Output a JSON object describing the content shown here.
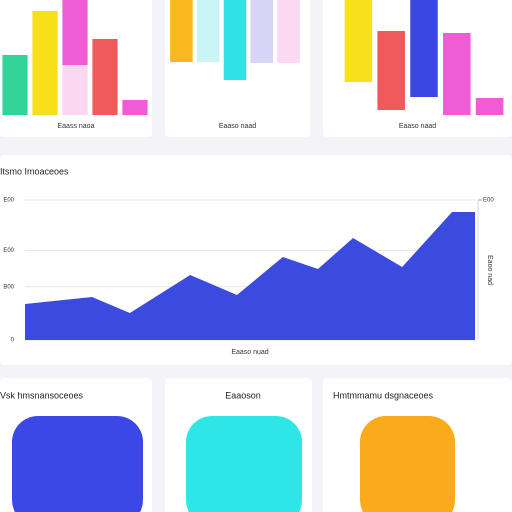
{
  "chart_data": [
    {
      "type": "floating-bar",
      "label": "Eaass naoa",
      "ylim": [
        0,
        115
      ],
      "bars": [
        {
          "segments": [
            {
              "low": 0,
              "high": 60,
              "color": "#33d49a"
            }
          ]
        },
        {
          "segments": [
            {
              "low": 0,
              "high": 104,
              "color": "#f7e01a"
            }
          ]
        },
        {
          "segments": [
            {
              "low": 0,
              "high": 50,
              "color": "#fbd7f1"
            },
            {
              "low": 50,
              "high": 115,
              "color": "#f05bd6"
            }
          ]
        },
        {
          "segments": [
            {
              "low": 0,
              "high": 76,
              "color": "#f15a5a"
            }
          ]
        },
        {
          "segments": [
            {
              "low": 0,
              "high": 15,
              "color": "#f05bd6"
            }
          ]
        }
      ]
    },
    {
      "type": "floating-bar",
      "label": "Eaaso naad",
      "ylim": [
        0,
        115
      ],
      "bars": [
        {
          "segments": [
            {
              "low": 53,
              "high": 115,
              "color": "#f9b820"
            }
          ]
        },
        {
          "segments": [
            {
              "low": 53,
              "high": 115,
              "color": "#c9f5f7"
            }
          ]
        },
        {
          "segments": [
            {
              "low": 35,
              "high": 115,
              "color": "#2fe2e6"
            }
          ]
        },
        {
          "segments": [
            {
              "low": 52,
              "high": 115,
              "color": "#d8d4f7"
            }
          ]
        },
        {
          "segments": [
            {
              "low": 52,
              "high": 115,
              "color": "#fbd9f2"
            }
          ]
        }
      ]
    },
    {
      "type": "floating-bar",
      "label": "Eaaso naad",
      "ylim": [
        0,
        115
      ],
      "bars": [
        {
          "segments": [
            {
              "low": 33,
              "high": 115,
              "color": "#f7e21a"
            }
          ]
        },
        {
          "segments": [
            {
              "low": 5,
              "high": 84,
              "color": "#f15a5a"
            }
          ]
        },
        {
          "segments": [
            {
              "low": 18,
              "high": 115,
              "color": "#3a46e0"
            }
          ]
        },
        {
          "segments": [
            {
              "low": 0,
              "high": 82,
              "color": "#f05bd6"
            }
          ]
        },
        {
          "segments": [
            {
              "low": 0,
              "high": 17,
              "color": "#f05bd6"
            }
          ]
        }
      ]
    },
    {
      "type": "area",
      "title": "Itsmo Imoaceoes",
      "xlabel": "Eaaso nuad",
      "y2label": "Eaoo nad",
      "color": "#3b4be0",
      "grid": true,
      "xlim": [
        0,
        100
      ],
      "ylim": [
        0,
        100
      ],
      "y2lim": [
        0,
        100
      ],
      "x": [
        0,
        14.9,
        23.3,
        36.7,
        47.1,
        57.3,
        65.1,
        72.9,
        83.8,
        94.9,
        100
      ],
      "values": [
        25.7,
        30.7,
        19.3,
        46.4,
        32.1,
        59.3,
        50.7,
        72.9,
        52.1,
        91.4,
        91.4
      ],
      "yticks": [
        0,
        {
          "value": 38,
          "label": "B00"
        },
        {
          "value": 64,
          "label": "E00"
        },
        {
          "value": 100,
          "label": "E00"
        }
      ],
      "y2ticks": [
        {
          "value": 100,
          "label": "E00"
        }
      ]
    }
  ],
  "tiles": [
    {
      "title": "Vsk hmsnansoceoes",
      "color": "#3b47e6"
    },
    {
      "title": "Eaaoson",
      "color": "#2ee6e6"
    },
    {
      "title": "Hmtmmamu dsgnaceoes",
      "color": "#fbaa1a"
    }
  ]
}
